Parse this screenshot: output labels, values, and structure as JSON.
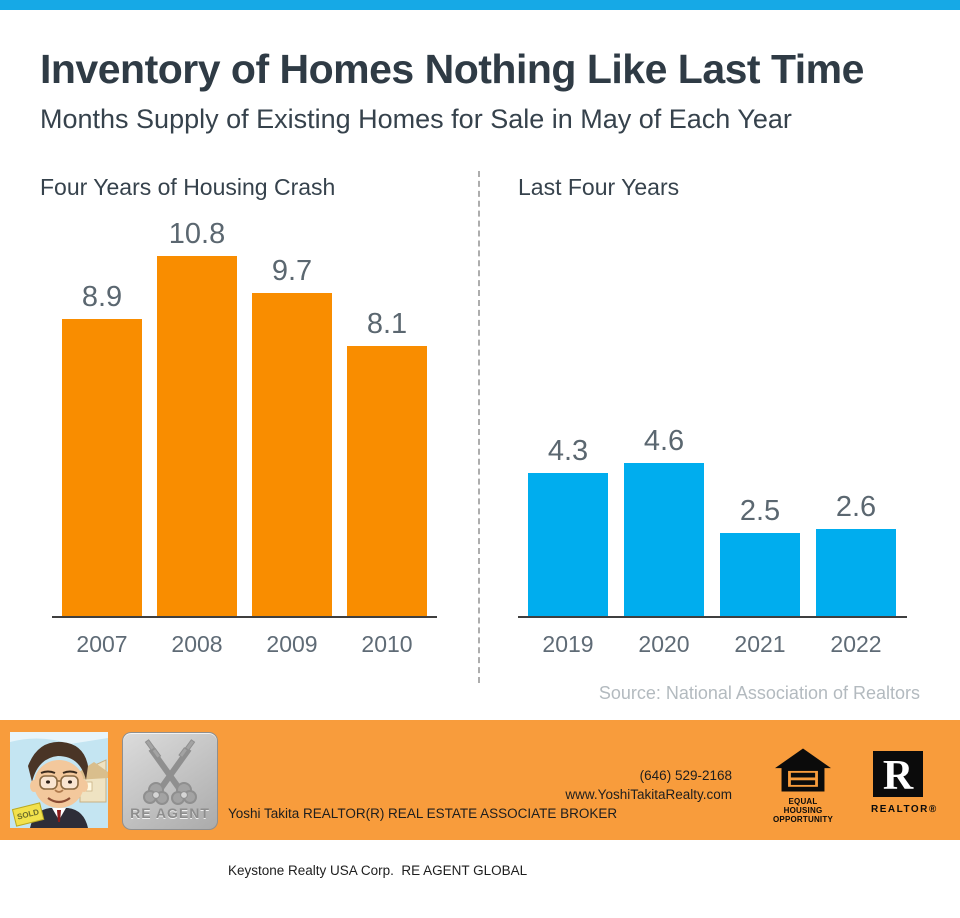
{
  "page": {
    "title": "Inventory of Homes Nothing Like Last Time",
    "subtitle": "Months Supply of Existing Homes for Sale in May of Each Year"
  },
  "colors": {
    "top_bar": "#16A9E6",
    "crash_bars": "#F98D00",
    "recent_bars": "#00ADEE",
    "footer_bg": "#F89C3C",
    "heading_text": "#36424C",
    "value_labels": "#5B6770",
    "source_text": "#B3BABF"
  },
  "chart_data": [
    {
      "type": "bar",
      "title": "Four Years of Housing Crash",
      "categories": [
        "2007",
        "2008",
        "2009",
        "2010"
      ],
      "values": [
        8.9,
        10.8,
        9.7,
        8.1
      ],
      "bar_color": "#F98D00",
      "ylim": [
        0,
        12
      ],
      "grid": false,
      "legend": "none",
      "data_labels": true
    },
    {
      "type": "bar",
      "title": "Last Four Years",
      "categories": [
        "2019",
        "2020",
        "2021",
        "2022"
      ],
      "values": [
        4.3,
        4.6,
        2.5,
        2.6
      ],
      "bar_color": "#00ADEE",
      "ylim": [
        0,
        12
      ],
      "grid": false,
      "legend": "none",
      "data_labels": true
    }
  ],
  "source_note": "Source: National Association of Realtors",
  "footer": {
    "agent_line1": "Yoshi Takita REALTOR(R) REAL ESTATE ASSOCIATE BROKER",
    "agent_line2": "Keystone Realty USA Corp.  RE AGENT GLOBAL",
    "phone": "(646) 529-2168",
    "website": "www.YoshiTakitaRealty.com",
    "reagent_logo_text": "RE AGENT",
    "sold_sign_text": "SOLD",
    "eho_label_line1": "EQUAL HOUSING",
    "eho_label_line2": "OPPORTUNITY",
    "realtor_label": "REALTOR®"
  }
}
